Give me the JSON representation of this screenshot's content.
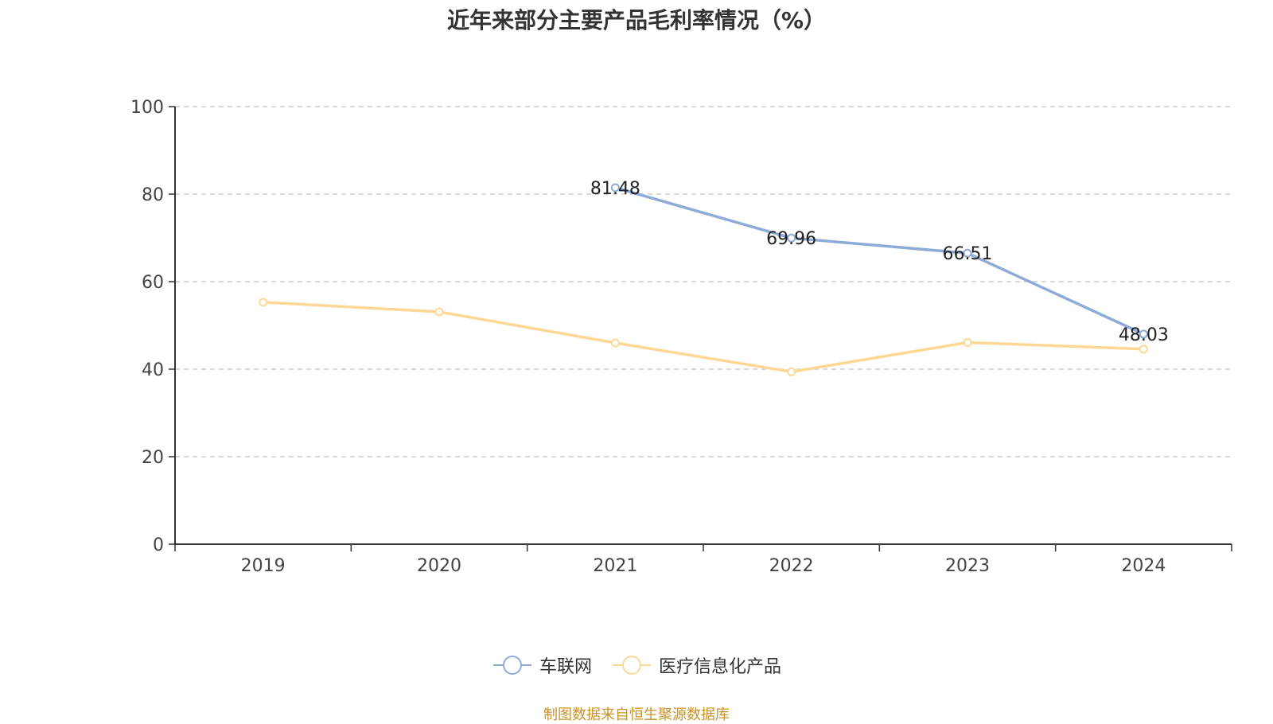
{
  "chart_data": {
    "type": "line",
    "title": "近年来部分主要产品毛利率情况（%）",
    "xlabel": "",
    "ylabel": "",
    "categories": [
      "2019",
      "2020",
      "2021",
      "2022",
      "2023",
      "2024"
    ],
    "ylim": [
      0,
      100
    ],
    "yticks": [
      0,
      20,
      40,
      60,
      80,
      100
    ],
    "grid": true,
    "legend_position": "bottom",
    "series": [
      {
        "name": "车联网",
        "color": "#8eabd8",
        "values": [
          null,
          null,
          81.48,
          69.96,
          66.51,
          48.03
        ],
        "labels": [
          "",
          "",
          "81.48",
          "69.96",
          "66.51",
          "48.03"
        ]
      },
      {
        "name": "医疗信息化产品",
        "color": "#fdd895",
        "values": [
          55.3,
          53.1,
          46.0,
          39.4,
          46.1,
          44.6
        ],
        "labels": [
          "",
          "",
          "",
          "",
          "",
          ""
        ]
      }
    ],
    "source_note": "制图数据来自恒生聚源数据库"
  }
}
